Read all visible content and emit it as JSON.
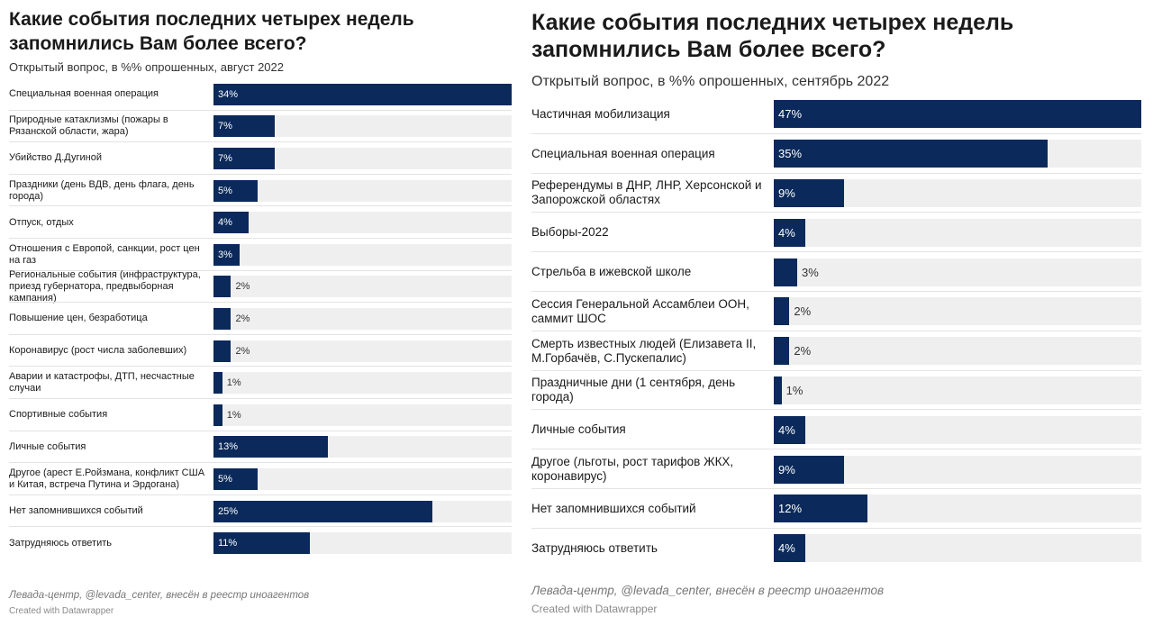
{
  "chart_data": [
    {
      "type": "bar",
      "orientation": "horizontal",
      "title": "Какие события последних четырех недель запомнились Вам более всего?",
      "subtitle": "Открытый вопрос, в %% опрошенных, август 2022",
      "categories": [
        "Специальная военная операция",
        "Природные катаклизмы (пожары в Рязанской области, жара)",
        "Убийство Д.Дугиной",
        "Праздники (день ВДВ, день флага, день города)",
        "Отпуск, отдых",
        "Отношения с Европой, санкции, рост цен на газ",
        "Региональные события (инфраструктура, приезд губернатора, предвыборная кампания)",
        "Повышение цен, безработица",
        "Коронавирус (рост числа заболевших)",
        "Аварии и катастрофы, ДТП, несчастные случаи",
        "Спортивные события",
        "Личные события",
        "Другое (арест Е.Ройзмана, конфликт США и Китая, встреча Путина и Эрдогана)",
        "Нет запомнившихся событий",
        "Затрудняюсь ответить"
      ],
      "values": [
        34,
        7,
        7,
        5,
        4,
        3,
        2,
        2,
        2,
        1,
        1,
        13,
        5,
        25,
        11
      ],
      "value_labels": [
        "34%",
        "7%",
        "7%",
        "5%",
        "4%",
        "3%",
        "2%",
        "2%",
        "2%",
        "1%",
        "1%",
        "13%",
        "5%",
        "25%",
        "11%"
      ],
      "xlim": [
        0,
        34
      ],
      "unit": "%",
      "source": "Левада-центр, @levada_center, внесён в реестр иноагентов",
      "credit": "Created with Datawrapper"
    },
    {
      "type": "bar",
      "orientation": "horizontal",
      "title": "Какие события последних четырех недель запомнились Вам более всего?",
      "subtitle": "Открытый вопрос, в %% опрошенных, сентябрь 2022",
      "categories": [
        "Частичная мобилизация",
        "Специальная военная операция",
        "Референдумы в ДНР, ЛНР, Херсонской и Запорожской областях",
        "Выборы-2022",
        "Стрельба в ижевской школе",
        "Сессия Генеральной Ассамблеи ООН, саммит ШОС",
        "Смерть известных людей (Елизавета II, М.Горбачёв, С.Пускепалис)",
        "Праздничные дни (1 сентября, день города)",
        "Личные события",
        "Другое (льготы, рост тарифов ЖКХ, коронавирус)",
        "Нет запомнившихся событий",
        "Затрудняюсь ответить"
      ],
      "values": [
        47,
        35,
        9,
        4,
        3,
        2,
        2,
        1,
        4,
        9,
        12,
        4
      ],
      "value_labels": [
        "47%",
        "35%",
        "9%",
        "4%",
        "3%",
        "2%",
        "2%",
        "1%",
        "4%",
        "9%",
        "12%",
        "4%"
      ],
      "xlim": [
        0,
        47
      ],
      "unit": "%",
      "source": "Левада-центр, @levada_center, внесён в реестр иноагентов",
      "credit": "Created with Datawrapper"
    }
  ]
}
